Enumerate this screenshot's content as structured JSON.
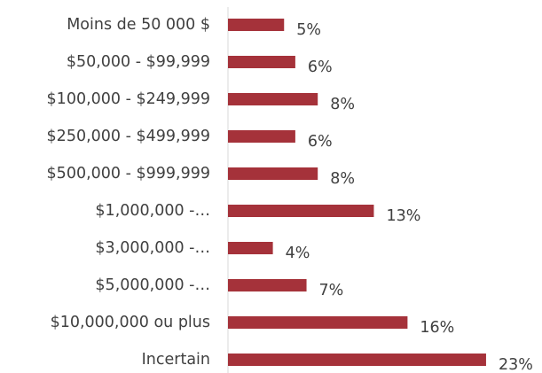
{
  "chart_data": {
    "type": "bar",
    "orientation": "horizontal",
    "categories": [
      "Moins de 50 000 $",
      "$50,000 - $99,999",
      "$100,000 - $249,999",
      "$250,000 - $499,999",
      "$500,000 - $999,999",
      "$1,000,000 -…",
      "$3,000,000 -…",
      "$5,000,000 -…",
      "$10,000,000 ou plus",
      "Incertain"
    ],
    "values": [
      5,
      6,
      8,
      6,
      8,
      13,
      4,
      7,
      16,
      23
    ],
    "value_labels": [
      "5%",
      "6%",
      "8%",
      "6%",
      "8%",
      "13%",
      "4%",
      "7%",
      "16%",
      "23%"
    ],
    "color": "#a5323a"
  }
}
